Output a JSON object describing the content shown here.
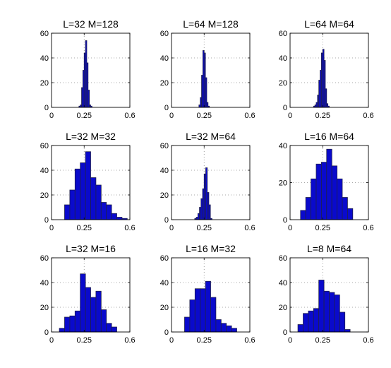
{
  "chart_data": [
    {
      "type": "bar",
      "title": "L=32 M=128",
      "xlim": [
        0,
        0.6
      ],
      "ylim": [
        0,
        60
      ],
      "xticks": [
        "0",
        "0.25",
        "0.6"
      ],
      "yticks": [
        "0",
        "20",
        "40",
        "60"
      ],
      "grid": true,
      "bin_width": 0.01,
      "bins": [
        0.19,
        0.2,
        0.21,
        0.22,
        0.23,
        0.24,
        0.25,
        0.26,
        0.27,
        0.28,
        0.29,
        0.3
      ],
      "values": [
        0,
        0,
        1,
        2,
        16,
        30,
        44,
        54,
        36,
        14,
        2,
        1
      ]
    },
    {
      "type": "bar",
      "title": "L=64 M=128",
      "xlim": [
        0,
        0.6
      ],
      "ylim": [
        0,
        60
      ],
      "xticks": [
        "0",
        "0.25",
        "0.6"
      ],
      "yticks": [
        "0",
        "20",
        "40",
        "60"
      ],
      "grid": true,
      "bin_width": 0.01,
      "bins": [
        0.19,
        0.2,
        0.21,
        0.22,
        0.23,
        0.24,
        0.25,
        0.26,
        0.27,
        0.28,
        0.29
      ],
      "values": [
        0,
        0,
        2,
        8,
        26,
        46,
        44,
        24,
        4,
        1,
        0
      ]
    },
    {
      "type": "bar",
      "title": "L=64 M=64",
      "xlim": [
        0,
        0.6
      ],
      "ylim": [
        0,
        60
      ],
      "xticks": [
        "0",
        "0.25",
        "0.6"
      ],
      "yticks": [
        "0",
        "20",
        "40",
        "60"
      ],
      "grid": true,
      "bin_width": 0.01,
      "bins": [
        0.18,
        0.19,
        0.2,
        0.21,
        0.22,
        0.23,
        0.24,
        0.25,
        0.26,
        0.27,
        0.28,
        0.29,
        0.3
      ],
      "values": [
        1,
        2,
        4,
        10,
        22,
        30,
        44,
        47,
        38,
        15,
        3,
        1,
        0
      ]
    },
    {
      "type": "bar",
      "title": "L=32 M=32",
      "xlim": [
        0,
        0.6
      ],
      "ylim": [
        0,
        60
      ],
      "xticks": [
        "0",
        "0.25",
        "0.6"
      ],
      "yticks": [
        "0",
        "20",
        "40",
        "60"
      ],
      "grid": true,
      "bin_width": 0.04,
      "bins": [
        0.1,
        0.14,
        0.18,
        0.22,
        0.26,
        0.3,
        0.34,
        0.38,
        0.42,
        0.46,
        0.5,
        0.54
      ],
      "values": [
        12,
        24,
        41,
        46,
        55,
        34,
        28,
        14,
        12,
        5,
        2,
        1
      ]
    },
    {
      "type": "bar",
      "title": "L=32 M=64",
      "xlim": [
        0,
        0.6
      ],
      "ylim": [
        0,
        60
      ],
      "xticks": [
        "0",
        "0.25",
        "0.6"
      ],
      "yticks": [
        "0",
        "20",
        "40",
        "60"
      ],
      "grid": true,
      "bin_width": 0.012,
      "bins": [
        0.178,
        0.19,
        0.202,
        0.214,
        0.226,
        0.238,
        0.25,
        0.262,
        0.274,
        0.286,
        0.298,
        0.31
      ],
      "values": [
        1,
        2,
        5,
        10,
        17,
        25,
        37,
        42,
        22,
        12,
        1,
        0
      ]
    },
    {
      "type": "bar",
      "title": "L=16 M=64",
      "xlim": [
        0,
        0.6
      ],
      "ylim": [
        0,
        40
      ],
      "xticks": [
        "0",
        "0.25",
        "0.6"
      ],
      "yticks": [
        "0",
        "20",
        "40"
      ],
      "grid": true,
      "bin_width": 0.04,
      "bins": [
        0.08,
        0.12,
        0.16,
        0.2,
        0.24,
        0.28,
        0.32,
        0.36,
        0.4,
        0.44
      ],
      "values": [
        5,
        12,
        22,
        30,
        31,
        38,
        29,
        22,
        12,
        6
      ]
    },
    {
      "type": "bar",
      "title": "L=32 M=16",
      "xlim": [
        0,
        0.6
      ],
      "ylim": [
        0,
        60
      ],
      "xticks": [
        "0",
        "0.25",
        "0.6"
      ],
      "yticks": [
        "0",
        "20",
        "40",
        "60"
      ],
      "grid": true,
      "bin_width": 0.04,
      "bins": [
        0.06,
        0.1,
        0.14,
        0.18,
        0.22,
        0.26,
        0.3,
        0.34,
        0.38,
        0.42,
        0.46
      ],
      "values": [
        3,
        12,
        13,
        17,
        47,
        36,
        28,
        33,
        18,
        7,
        4
      ]
    },
    {
      "type": "bar",
      "title": "L=16 M=32",
      "xlim": [
        0,
        0.6
      ],
      "ylim": [
        0,
        60
      ],
      "xticks": [
        "0",
        "0.25",
        "0.6"
      ],
      "yticks": [
        "0",
        "20",
        "40",
        "60"
      ],
      "grid": true,
      "bin_width": 0.04,
      "bins": [
        0.1,
        0.14,
        0.18,
        0.22,
        0.26,
        0.3,
        0.34,
        0.38,
        0.42,
        0.46
      ],
      "values": [
        12,
        26,
        35,
        35,
        41,
        28,
        10,
        7,
        5,
        3
      ]
    },
    {
      "type": "bar",
      "title": "L=8 M=64",
      "xlim": [
        0,
        0.6
      ],
      "ylim": [
        0,
        60
      ],
      "xticks": [
        "0",
        "0.25",
        "0.6"
      ],
      "yticks": [
        "0",
        "20",
        "40",
        "60"
      ],
      "grid": true,
      "bin_width": 0.04,
      "bins": [
        0.06,
        0.1,
        0.14,
        0.18,
        0.22,
        0.26,
        0.3,
        0.34,
        0.38,
        0.42
      ],
      "values": [
        6,
        15,
        17,
        19,
        42,
        33,
        32,
        30,
        16,
        2
      ]
    }
  ]
}
